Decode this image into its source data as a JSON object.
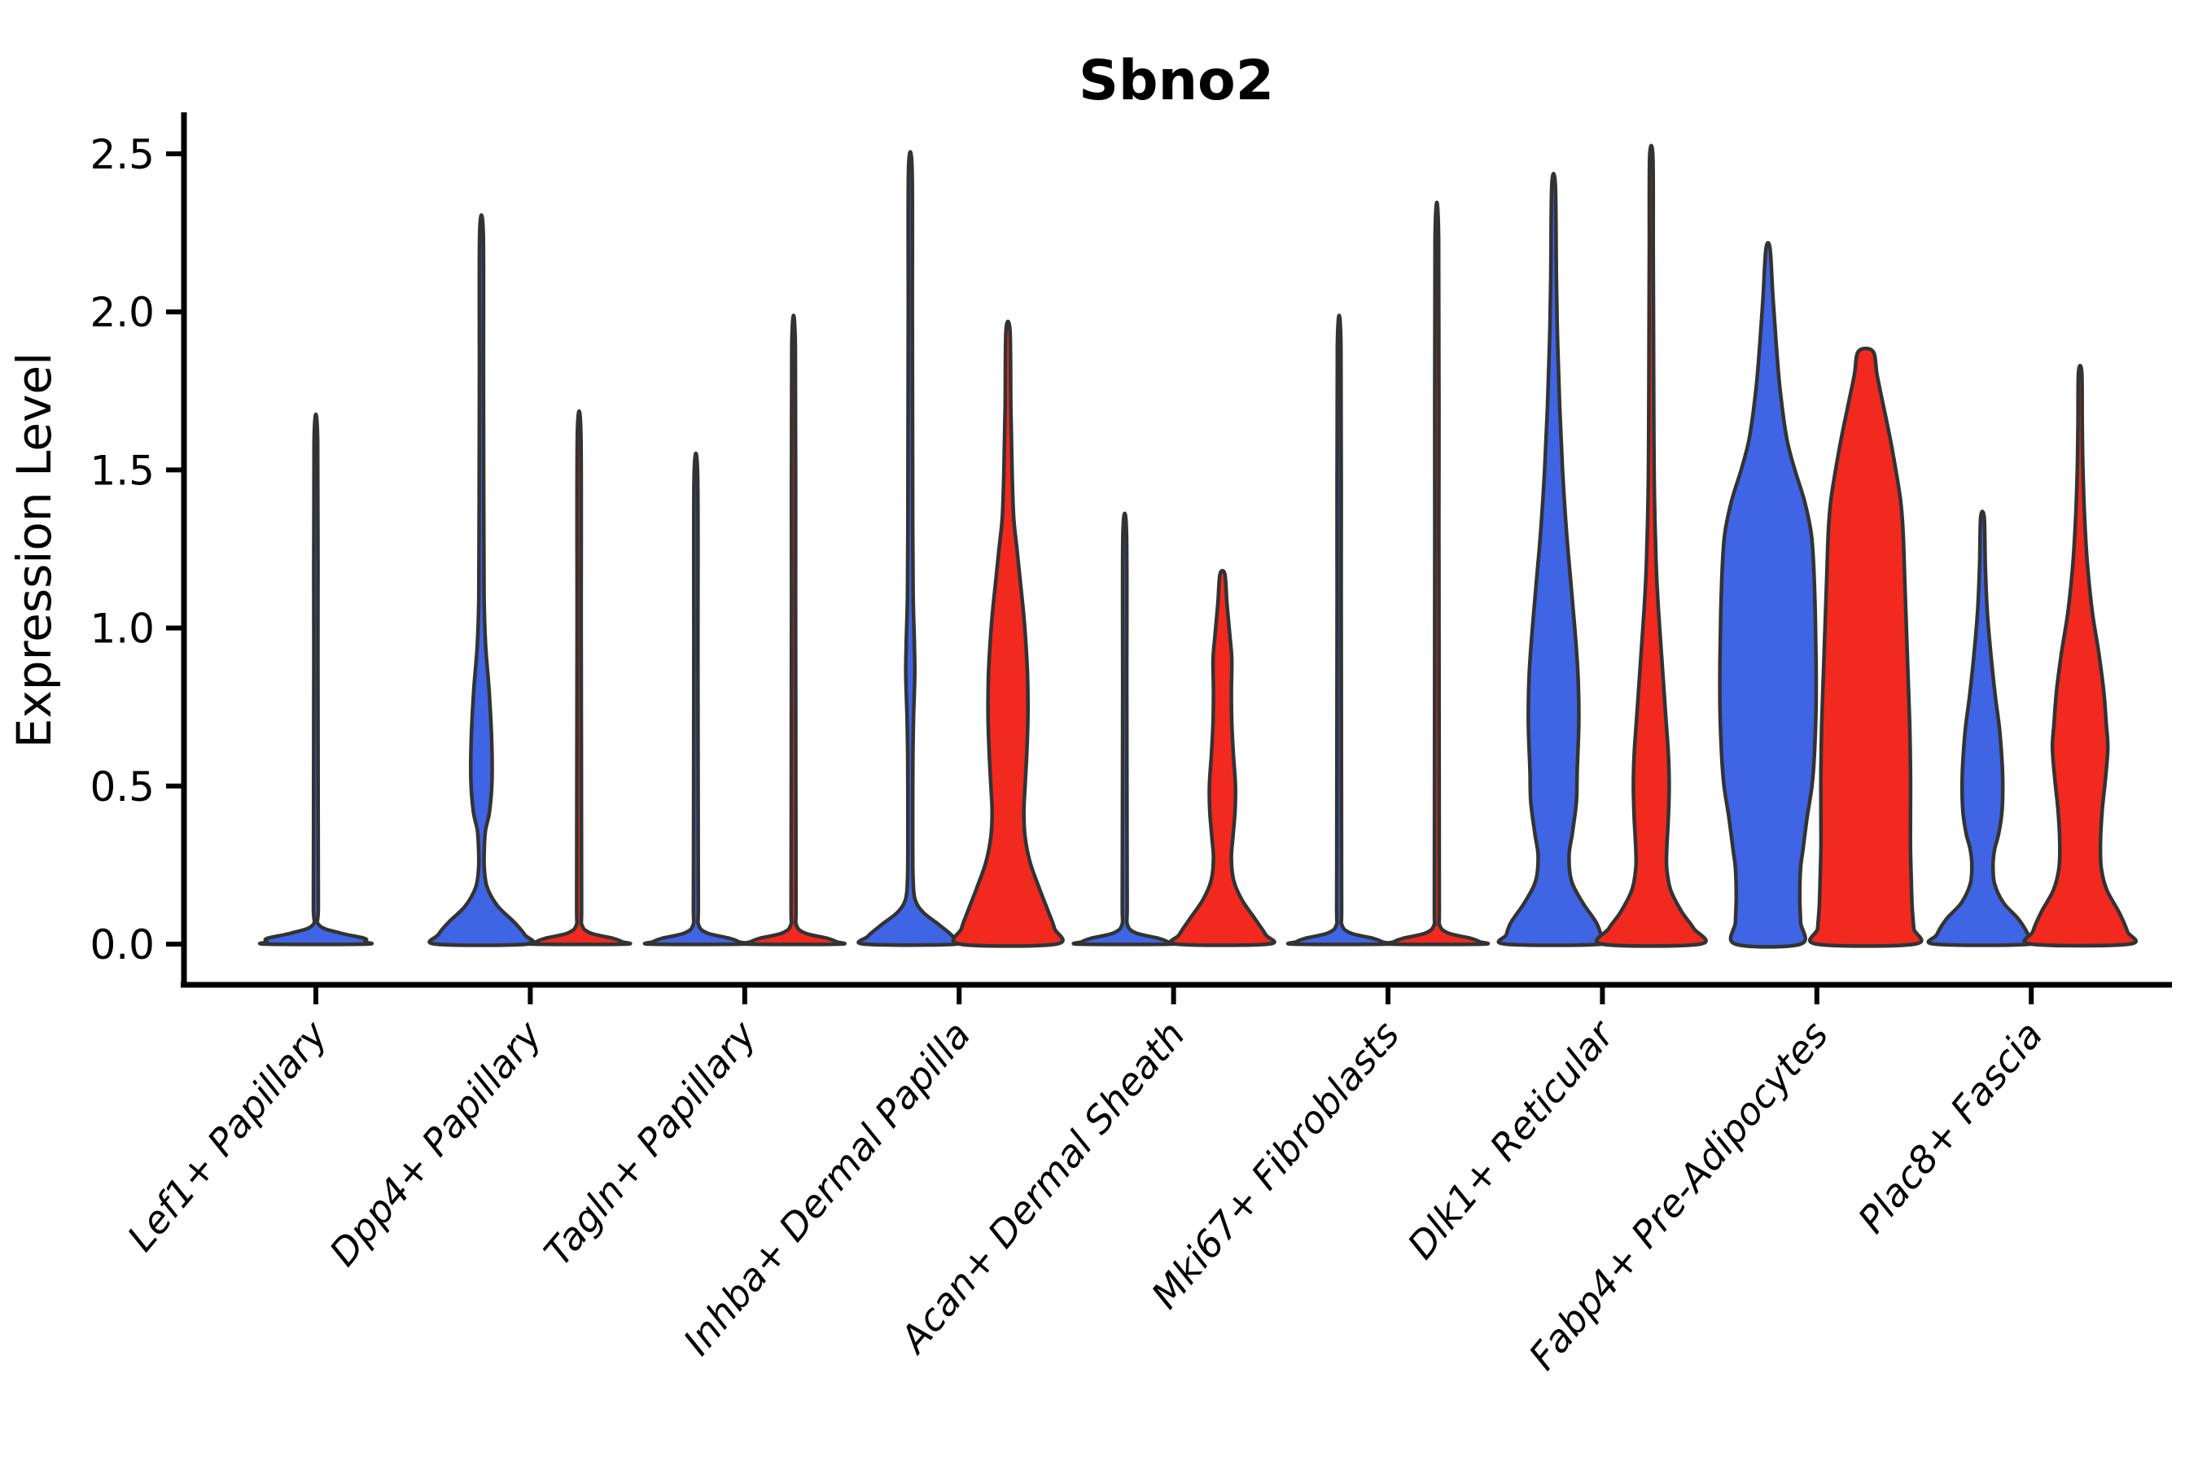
{
  "title": "Sbno2",
  "y_axis": {
    "label": "Expression Level",
    "ticks": [
      "0.0",
      "0.5",
      "1.0",
      "1.5",
      "2.0",
      "2.5"
    ],
    "tick_values": [
      0.0,
      0.5,
      1.0,
      1.5,
      2.0,
      2.5
    ]
  },
  "x_axis": {
    "categories": [
      "Lef1+ Papillary",
      "Dpp4+ Papillary",
      "Tagln+ Papillary",
      "Inhba+ Dermal Papilla",
      "Acan+ Dermal Sheath",
      "Mki67+ Fibroblasts",
      "Dlk1+ Reticular",
      "Fabp4+ Pre-Adipocytes",
      "Plac8+ Fascia"
    ]
  },
  "colors": {
    "blue": "#3F65E5",
    "red": "#F2291F",
    "outline": "#333333",
    "axis": "#000000",
    "background": "#ffffff"
  },
  "chart_data": {
    "type": "violin",
    "title": "Sbno2",
    "xlabel": "",
    "ylabel": "Expression Level",
    "ylim": [
      0,
      2.62
    ],
    "grid": false,
    "legend": "none",
    "split_colors": {
      "left": "#3F65E5",
      "right": "#F2291F"
    },
    "categories": [
      "Lef1+ Papillary",
      "Dpp4+ Papillary",
      "Tagln+ Papillary",
      "Inhba+ Dermal Papilla",
      "Acan+ Dermal Sheath",
      "Mki67+ Fibroblasts",
      "Dlk1+ Reticular",
      "Fabp4+ Pre-Adipocytes",
      "Plac8+ Fascia"
    ],
    "max_expression": {
      "Lef1+ Papillary": {
        "single": 1.59
      },
      "Dpp4+ Papillary": {
        "blue": 2.25,
        "red": 1.61
      },
      "Tagln+ Papillary": {
        "blue": 1.48,
        "red": 1.89
      },
      "Inhba+ Dermal Papilla": {
        "blue": 2.45,
        "red": 1.94
      },
      "Acan+ Dermal Sheath": {
        "blue": 1.3,
        "red": 1.17
      },
      "Mki67+ Fibroblasts": {
        "blue": 1.89,
        "red": 2.23
      },
      "Dlk1+ Reticular": {
        "blue": 2.4,
        "red": 2.49
      },
      "Fabp4+ Pre-Adipocytes": {
        "blue": 2.2,
        "red": 1.88
      },
      "Plac8+ Fascia": {
        "blue": 1.35,
        "red": 1.81
      }
    },
    "violins": [
      {
        "category_index": 0,
        "category": "Lef1+ Papillary",
        "position": "full",
        "color": "blue",
        "max": 1.59,
        "profile": [
          [
            1.59,
            2.2
          ],
          [
            0.9,
            2.5
          ],
          [
            0.4,
            2.8
          ],
          [
            0.12,
            3
          ],
          [
            0.06,
            4
          ],
          [
            0.035,
            30
          ],
          [
            0.018,
            85
          ],
          [
            0.007,
            112
          ],
          [
            0,
            116
          ]
        ]
      },
      {
        "category_index": 1,
        "category": "Dpp4+ Papillary",
        "position": "left",
        "color": "blue",
        "max": 2.25,
        "profile": [
          [
            2.25,
            2.2
          ],
          [
            1.8,
            2.5
          ],
          [
            1.4,
            2.8
          ],
          [
            1.1,
            3.2
          ],
          [
            0.95,
            5
          ],
          [
            0.8,
            9.5
          ],
          [
            0.65,
            12.5
          ],
          [
            0.52,
            13
          ],
          [
            0.42,
            10
          ],
          [
            0.36,
            5
          ],
          [
            0.3,
            3.5
          ],
          [
            0.24,
            3.5
          ],
          [
            0.18,
            7
          ],
          [
            0.12,
            20
          ],
          [
            0.07,
            40
          ],
          [
            0.03,
            53
          ],
          [
            0,
            56
          ]
        ]
      },
      {
        "category_index": 1,
        "category": "Dpp4+ Papillary",
        "position": "right",
        "color": "red",
        "max": 1.61,
        "profile": [
          [
            1.61,
            2.2
          ],
          [
            1.0,
            2.5
          ],
          [
            0.5,
            2.8
          ],
          [
            0.12,
            3
          ],
          [
            0.06,
            3.5
          ],
          [
            0.035,
            14
          ],
          [
            0.018,
            42
          ],
          [
            0.007,
            53
          ],
          [
            0,
            55
          ]
        ]
      },
      {
        "category_index": 2,
        "category": "Tagln+ Papillary",
        "position": "left",
        "color": "blue",
        "max": 1.48,
        "profile": [
          [
            1.48,
            2.2
          ],
          [
            0.9,
            2.5
          ],
          [
            0.4,
            2.8
          ],
          [
            0.12,
            3
          ],
          [
            0.06,
            3.5
          ],
          [
            0.035,
            14
          ],
          [
            0.018,
            42
          ],
          [
            0.007,
            53
          ],
          [
            0,
            55
          ]
        ]
      },
      {
        "category_index": 2,
        "category": "Tagln+ Papillary",
        "position": "right",
        "color": "red",
        "max": 1.89,
        "profile": [
          [
            1.89,
            2.2
          ],
          [
            1.1,
            2.5
          ],
          [
            0.5,
            2.8
          ],
          [
            0.12,
            3
          ],
          [
            0.06,
            3.5
          ],
          [
            0.035,
            14
          ],
          [
            0.018,
            42
          ],
          [
            0.007,
            53
          ],
          [
            0,
            55
          ]
        ]
      },
      {
        "category_index": 3,
        "category": "Inhba+ Dermal Papilla",
        "position": "left",
        "color": "blue",
        "max": 2.45,
        "profile": [
          [
            2.45,
            2.2
          ],
          [
            2.0,
            2.5
          ],
          [
            1.6,
            2.8
          ],
          [
            1.3,
            3
          ],
          [
            1.1,
            3.5
          ],
          [
            0.95,
            5
          ],
          [
            0.85,
            5.5
          ],
          [
            0.72,
            4
          ],
          [
            0.6,
            3.2
          ],
          [
            0.45,
            3
          ],
          [
            0.3,
            3
          ],
          [
            0.2,
            3.5
          ],
          [
            0.14,
            6
          ],
          [
            0.1,
            16
          ],
          [
            0.06,
            36
          ],
          [
            0.025,
            52
          ],
          [
            0,
            56
          ]
        ]
      },
      {
        "category_index": 3,
        "category": "Inhba+ Dermal Papilla",
        "position": "right",
        "color": "red",
        "max": 1.94,
        "profile": [
          [
            1.94,
            2.5
          ],
          [
            1.7,
            3.5
          ],
          [
            1.5,
            5
          ],
          [
            1.35,
            7
          ],
          [
            1.25,
            11
          ],
          [
            1.15,
            15
          ],
          [
            1.05,
            19
          ],
          [
            0.95,
            22
          ],
          [
            0.85,
            24
          ],
          [
            0.72,
            24.5
          ],
          [
            0.6,
            23
          ],
          [
            0.5,
            21
          ],
          [
            0.42,
            19.5
          ],
          [
            0.34,
            21
          ],
          [
            0.26,
            27
          ],
          [
            0.18,
            38
          ],
          [
            0.1,
            50
          ],
          [
            0.05,
            57
          ],
          [
            0,
            59
          ]
        ]
      },
      {
        "category_index": 4,
        "category": "Acan+ Dermal Sheath",
        "position": "left",
        "color": "blue",
        "max": 1.3,
        "profile": [
          [
            1.3,
            2.2
          ],
          [
            0.8,
            2.5
          ],
          [
            0.35,
            2.8
          ],
          [
            0.12,
            3
          ],
          [
            0.06,
            3.5
          ],
          [
            0.035,
            14
          ],
          [
            0.018,
            42
          ],
          [
            0.007,
            53
          ],
          [
            0,
            55
          ]
        ]
      },
      {
        "category_index": 4,
        "category": "Acan+ Dermal Sheath",
        "position": "right",
        "color": "red",
        "max": 1.17,
        "profile": [
          [
            1.17,
            3
          ],
          [
            1.08,
            5.5
          ],
          [
            0.98,
            9
          ],
          [
            0.9,
            11.5
          ],
          [
            0.8,
            11
          ],
          [
            0.7,
            11.5
          ],
          [
            0.6,
            13.5
          ],
          [
            0.5,
            16
          ],
          [
            0.42,
            15.5
          ],
          [
            0.34,
            13
          ],
          [
            0.27,
            11
          ],
          [
            0.2,
            14
          ],
          [
            0.14,
            24
          ],
          [
            0.08,
            40
          ],
          [
            0.03,
            53
          ],
          [
            0,
            56
          ]
        ]
      },
      {
        "category_index": 5,
        "category": "Mki67+ Fibroblasts",
        "position": "left",
        "color": "blue",
        "max": 1.89,
        "profile": [
          [
            1.89,
            2.2
          ],
          [
            1.1,
            2.5
          ],
          [
            0.5,
            2.8
          ],
          [
            0.12,
            3
          ],
          [
            0.06,
            3.5
          ],
          [
            0.035,
            14
          ],
          [
            0.018,
            42
          ],
          [
            0.007,
            53
          ],
          [
            0,
            55
          ]
        ]
      },
      {
        "category_index": 5,
        "category": "Mki67+ Fibroblasts",
        "position": "right",
        "color": "red",
        "max": 2.23,
        "profile": [
          [
            2.23,
            2.2
          ],
          [
            1.3,
            2.5
          ],
          [
            0.6,
            2.8
          ],
          [
            0.12,
            3
          ],
          [
            0.06,
            3.5
          ],
          [
            0.035,
            14
          ],
          [
            0.018,
            42
          ],
          [
            0.007,
            53
          ],
          [
            0,
            55
          ]
        ]
      },
      {
        "category_index": 6,
        "category": "Dlk1+ Reticular",
        "position": "left",
        "color": "blue",
        "max": 2.4,
        "profile": [
          [
            2.4,
            2.2
          ],
          [
            2.1,
            3.5
          ],
          [
            1.9,
            5
          ],
          [
            1.7,
            7.5
          ],
          [
            1.5,
            11
          ],
          [
            1.3,
            16
          ],
          [
            1.15,
            21
          ],
          [
            1.0,
            26
          ],
          [
            0.85,
            30
          ],
          [
            0.7,
            31
          ],
          [
            0.55,
            29
          ],
          [
            0.45,
            28
          ],
          [
            0.35,
            23
          ],
          [
            0.28,
            19
          ],
          [
            0.2,
            22
          ],
          [
            0.13,
            36
          ],
          [
            0.07,
            52
          ],
          [
            0.03,
            58
          ],
          [
            0,
            59
          ]
        ]
      },
      {
        "category_index": 6,
        "category": "Dlk1+ Reticular",
        "position": "right",
        "color": "red",
        "max": 2.49,
        "profile": [
          [
            2.49,
            2
          ],
          [
            2.2,
            2.4
          ],
          [
            1.9,
            2.8
          ],
          [
            1.6,
            3.2
          ],
          [
            1.4,
            4
          ],
          [
            1.2,
            6
          ],
          [
            1.05,
            9
          ],
          [
            0.9,
            13
          ],
          [
            0.75,
            17
          ],
          [
            0.6,
            21
          ],
          [
            0.5,
            22
          ],
          [
            0.4,
            21
          ],
          [
            0.3,
            19
          ],
          [
            0.24,
            19
          ],
          [
            0.17,
            24
          ],
          [
            0.1,
            38
          ],
          [
            0.05,
            52
          ],
          [
            0,
            60
          ]
        ]
      },
      {
        "category_index": 7,
        "category": "Fabp4+ Pre-Adipocytes",
        "position": "left",
        "color": "blue",
        "max": 2.2,
        "profile": [
          [
            2.2,
            2.5
          ],
          [
            2.05,
            6
          ],
          [
            1.9,
            10
          ],
          [
            1.75,
            15
          ],
          [
            1.6,
            23
          ],
          [
            1.5,
            33
          ],
          [
            1.4,
            45
          ],
          [
            1.3,
            53
          ],
          [
            1.2,
            56
          ],
          [
            1.05,
            58
          ],
          [
            0.9,
            59
          ],
          [
            0.75,
            59
          ],
          [
            0.6,
            57
          ],
          [
            0.5,
            54
          ],
          [
            0.4,
            48
          ],
          [
            0.3,
            43
          ],
          [
            0.24,
            40
          ],
          [
            0.15,
            39
          ],
          [
            0.07,
            40
          ],
          [
            0,
            40
          ]
        ]
      },
      {
        "category_index": 7,
        "category": "Fabp4+ Pre-Adipocytes",
        "position": "right",
        "color": "red",
        "max": 1.88,
        "flat_top": true,
        "profile": [
          [
            1.875,
            9
          ],
          [
            1.8,
            14
          ],
          [
            1.7,
            22
          ],
          [
            1.6,
            30
          ],
          [
            1.5,
            37
          ],
          [
            1.4,
            43
          ],
          [
            1.3,
            46
          ],
          [
            1.15,
            48
          ],
          [
            1.0,
            50
          ],
          [
            0.85,
            52
          ],
          [
            0.7,
            54
          ],
          [
            0.55,
            55
          ],
          [
            0.4,
            55
          ],
          [
            0.3,
            55
          ],
          [
            0.2,
            56
          ],
          [
            0.12,
            57
          ],
          [
            0.05,
            59
          ],
          [
            0,
            60
          ]
        ]
      },
      {
        "category_index": 8,
        "category": "Plac8+ Fascia",
        "position": "left",
        "color": "blue",
        "max": 1.35,
        "profile": [
          [
            1.35,
            2.2
          ],
          [
            1.2,
            3.5
          ],
          [
            1.05,
            6
          ],
          [
            0.9,
            11
          ],
          [
            0.78,
            16
          ],
          [
            0.68,
            21
          ],
          [
            0.58,
            24
          ],
          [
            0.5,
            25
          ],
          [
            0.42,
            24
          ],
          [
            0.35,
            20
          ],
          [
            0.3,
            15
          ],
          [
            0.25,
            13
          ],
          [
            0.19,
            15
          ],
          [
            0.13,
            26
          ],
          [
            0.08,
            44
          ],
          [
            0.03,
            56
          ],
          [
            0,
            58
          ]
        ]
      },
      {
        "category_index": 8,
        "category": "Plac8+ Fascia",
        "position": "right",
        "color": "red",
        "max": 1.81,
        "profile": [
          [
            1.81,
            2
          ],
          [
            1.65,
            2.6
          ],
          [
            1.5,
            3.5
          ],
          [
            1.35,
            5.5
          ],
          [
            1.2,
            9
          ],
          [
            1.05,
            15
          ],
          [
            0.92,
            23
          ],
          [
            0.8,
            29
          ],
          [
            0.7,
            32
          ],
          [
            0.62,
            34
          ],
          [
            0.52,
            31
          ],
          [
            0.42,
            27
          ],
          [
            0.32,
            25
          ],
          [
            0.24,
            26
          ],
          [
            0.17,
            33
          ],
          [
            0.1,
            48
          ],
          [
            0.04,
            58
          ],
          [
            0,
            60
          ]
        ]
      }
    ]
  }
}
